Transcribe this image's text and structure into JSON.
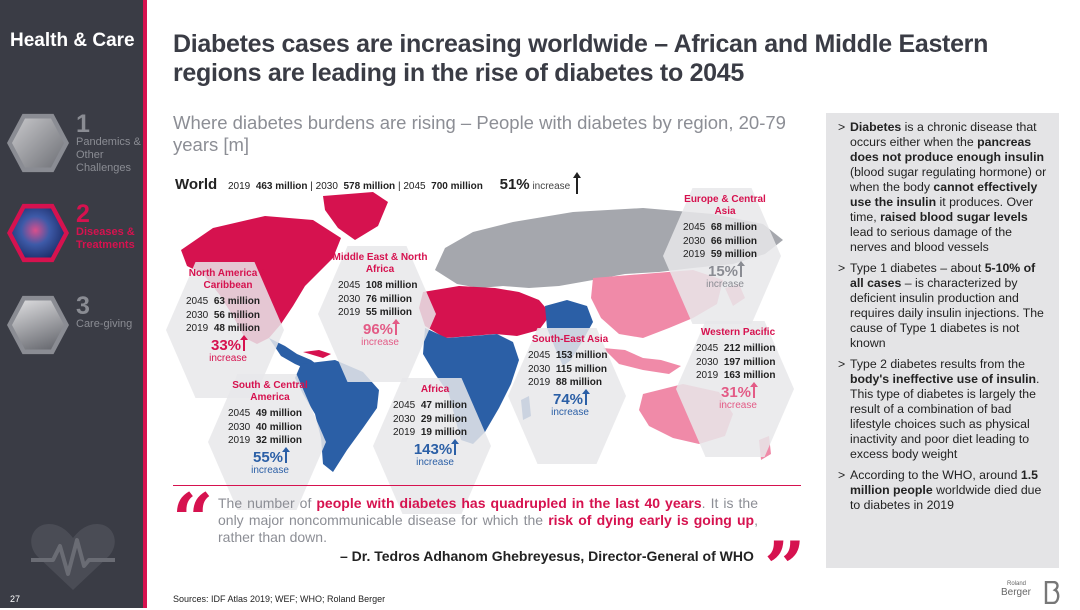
{
  "sidebar": {
    "brand": "Health & Care",
    "items": [
      {
        "num": "1",
        "label": "Pandemics & Other Challenges",
        "active": false
      },
      {
        "num": "2",
        "label": "Diseases & Treatments",
        "active": true
      },
      {
        "num": "3",
        "label": "Care-giving",
        "active": false
      }
    ],
    "page_number": "27"
  },
  "header": {
    "title": "Diabetes cases are increasing worldwide – African and Middle Eastern regions are leading in the rise of diabetes to 2045",
    "subtitle": "Where diabetes burdens are rising – People with diabetes by region, 20-79 years [m]"
  },
  "world": {
    "label": "World",
    "y2019": "2019",
    "v2019": "463 million",
    "y2030": "2030",
    "v2030": "578 million",
    "y2045": "2045",
    "v2045": "700 million",
    "sep": "|",
    "pct": "51%",
    "inc": "increase"
  },
  "regions": [
    {
      "key": "na",
      "name": "North America & Caribbean",
      "rows": [
        [
          "2045",
          "63 million"
        ],
        [
          "2030",
          "56 million"
        ],
        [
          "2019",
          "48 million"
        ]
      ],
      "pct": "33%",
      "inc": "increase",
      "color": "pink"
    },
    {
      "key": "me",
      "name": "Middle East & North Africa",
      "rows": [
        [
          "2045",
          "108 million"
        ],
        [
          "2030",
          "76 million"
        ],
        [
          "2019",
          "55 million"
        ]
      ],
      "pct": "96%",
      "inc": "increase",
      "color": "pink"
    },
    {
      "key": "eu",
      "name": "Europe & Central Asia",
      "rows": [
        [
          "2045",
          "68 million"
        ],
        [
          "2030",
          "66 million"
        ],
        [
          "2019",
          "59 million"
        ]
      ],
      "pct": "15%",
      "inc": "increase",
      "color": "grey"
    },
    {
      "key": "sa",
      "name": "South & Central America",
      "rows": [
        [
          "2045",
          "49 million"
        ],
        [
          "2030",
          "40 million"
        ],
        [
          "2019",
          "32 million"
        ]
      ],
      "pct": "55%",
      "inc": "increase",
      "color": "blue"
    },
    {
      "key": "af",
      "name": "Africa",
      "rows": [
        [
          "2045",
          "47 million"
        ],
        [
          "2030",
          "29 million"
        ],
        [
          "2019",
          "19 million"
        ]
      ],
      "pct": "143%",
      "inc": "increase",
      "color": "blue"
    },
    {
      "key": "se",
      "name": "South-East Asia",
      "rows": [
        [
          "2045",
          "153 million"
        ],
        [
          "2030",
          "115 million"
        ],
        [
          "2019",
          "88 million"
        ]
      ],
      "pct": "74%",
      "inc": "increase",
      "color": "blue"
    },
    {
      "key": "wp",
      "name": "Western Pacific",
      "rows": [
        [
          "2045",
          "212 million"
        ],
        [
          "2030",
          "197 million"
        ],
        [
          "2019",
          "163 million"
        ]
      ],
      "pct": "31%",
      "inc": "increase",
      "color": "light"
    }
  ],
  "info_panel": {
    "p1": {
      "a": "Diabetes",
      "b": " is a chronic disease that occurs either when the ",
      "c": "pancreas does not produce enough insulin",
      "d": " (blood sugar regulating hormone) or when the body ",
      "e": "cannot effectively use the insulin",
      "f": " it produces. Over time, ",
      "g": "raised blood sugar levels",
      "h": " lead to serious damage of the nerves and blood vessels"
    },
    "p2": {
      "a": "Type 1 diabetes – about ",
      "b": "5-10% of all cases",
      "c": " – is characterized by deficient insulin production and requires daily insulin injections. The cause of Type 1 diabetes is not known"
    },
    "p3": {
      "a": "Type 2 diabetes results from the ",
      "b": "body's ineffective use of insulin",
      "c": ". This type of diabetes is largely the result of a combination of bad lifestyle choices such as physical inactivity and poor diet leading to excess body weight"
    },
    "p4": {
      "a": "According to the WHO, around ",
      "b": "1.5 million people",
      "c": " worldwide died due to diabetes in 2019"
    }
  },
  "quote": {
    "open_mark": "“",
    "close_mark": "”",
    "t1": "The number of ",
    "t2": "people with diabetes has quadrupled in the last 40 years",
    "t3": ". It is the only major noncommunicable disease for which the ",
    "t4": "risk of dying early is going up",
    "t5": ", rather than down.",
    "author": "– Dr. Tedros Adhanom Ghebreyesus, Director-General of WHO"
  },
  "footer": {
    "sources": "Sources: IDF Atlas 2019; WEF; WHO; Roland Berger",
    "logo_small": "Roland",
    "logo_big": "Berger"
  },
  "colors": {
    "accent": "#d6124f",
    "blue": "#2b5fa6",
    "light_pink": "#f08aa8",
    "grey_land": "#a5a7ad",
    "sidebar": "#3a3c45",
    "panel": "#e4e4e6"
  }
}
